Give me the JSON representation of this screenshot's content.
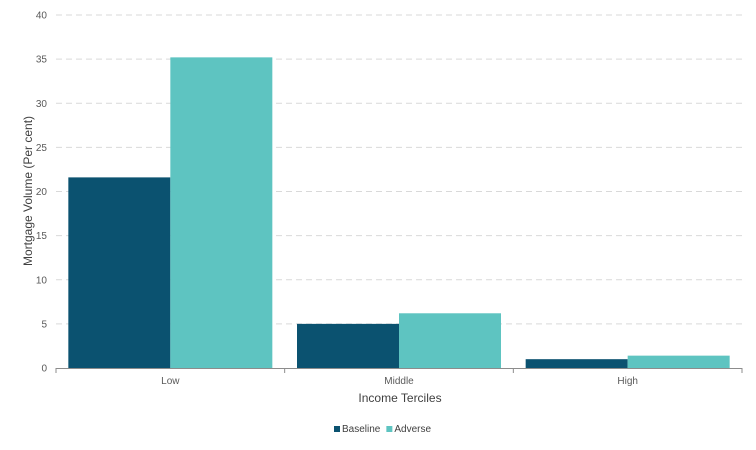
{
  "chart_data": {
    "type": "bar",
    "title": "",
    "xlabel": "Income Terciles",
    "ylabel": "Mortgage Volume (Per cent)",
    "categories": [
      "Low",
      "Middle",
      "High"
    ],
    "series": [
      {
        "name": "Baseline",
        "values": [
          21.6,
          5.0,
          1.0
        ],
        "color": "#0b5270"
      },
      {
        "name": "Adverse",
        "values": [
          35.2,
          6.2,
          1.4
        ],
        "color": "#5ec4c1"
      }
    ],
    "ylim": [
      0,
      40
    ],
    "yticks": [
      0,
      5,
      10,
      15,
      20,
      25,
      30,
      35,
      40
    ],
    "grid": true,
    "grid_style": "dashed",
    "legend_position": "bottom-center"
  }
}
